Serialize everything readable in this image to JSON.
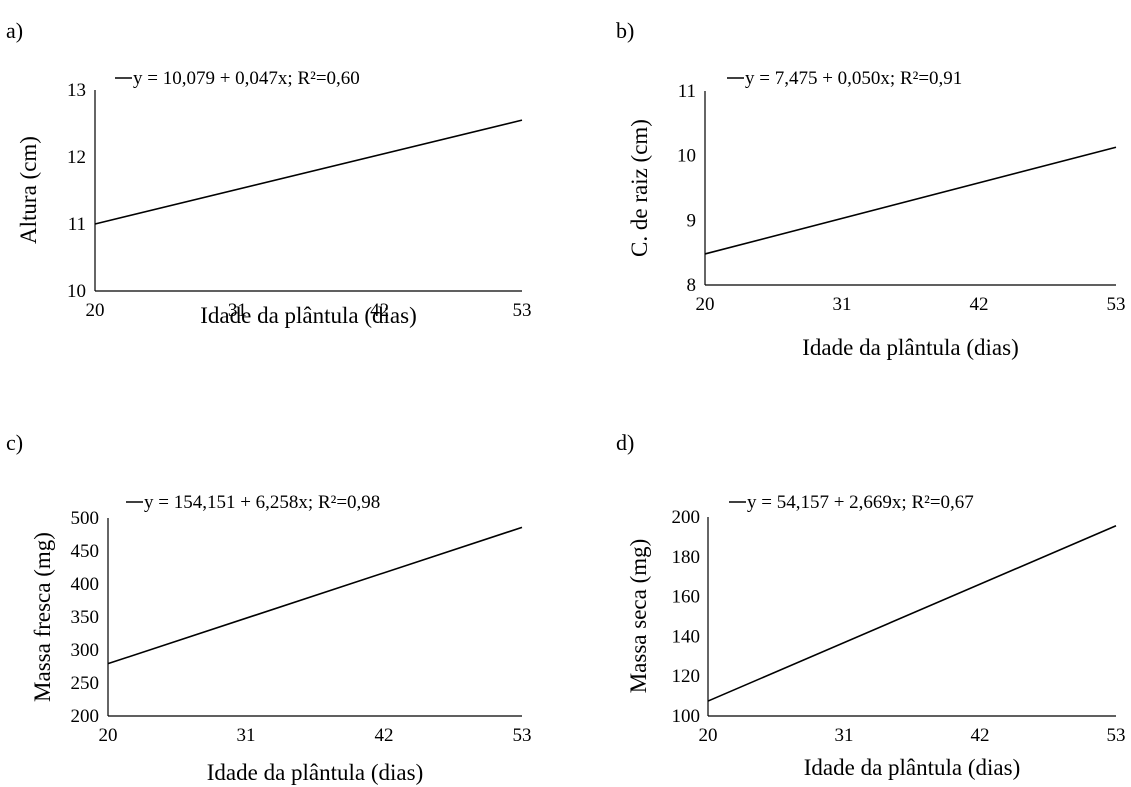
{
  "panels": [
    {
      "label": "a)"
    },
    {
      "label": "b)"
    },
    {
      "label": "c)"
    },
    {
      "label": "d)"
    }
  ],
  "chart_data": [
    {
      "type": "line",
      "xlabel": "Idade da plântula (dias)",
      "ylabel": "Altura (cm)",
      "x_ticks": [
        20,
        31,
        42,
        53
      ],
      "y_ticks": [
        10,
        11,
        12,
        13
      ],
      "xlim": [
        20,
        53
      ],
      "ylim": [
        10,
        13
      ],
      "grid": false,
      "legend_position": "top-left",
      "series": [
        {
          "name": "y = 10,079 + 0,047x; R²=0,60",
          "x": [
            20,
            53
          ],
          "y": [
            11.0,
            12.55
          ],
          "color": "#000000"
        }
      ]
    },
    {
      "type": "line",
      "xlabel": "Idade da plântula (dias)",
      "ylabel": "C. de raiz (cm)",
      "x_ticks": [
        20,
        31,
        42,
        53
      ],
      "y_ticks": [
        8,
        9,
        10,
        11
      ],
      "xlim": [
        20,
        53
      ],
      "ylim": [
        8,
        11
      ],
      "grid": false,
      "legend_position": "top-left",
      "series": [
        {
          "name": "y = 7,475 + 0,050x; R²=0,91",
          "x": [
            20,
            53
          ],
          "y": [
            8.48,
            10.13
          ],
          "color": "#000000"
        }
      ]
    },
    {
      "type": "line",
      "xlabel": "Idade da plântula (dias)",
      "ylabel": "Massa fresca (mg)",
      "x_ticks": [
        20,
        31,
        42,
        53
      ],
      "y_ticks": [
        200,
        250,
        300,
        350,
        400,
        450,
        500
      ],
      "xlim": [
        20,
        53
      ],
      "ylim": [
        200,
        500
      ],
      "grid": false,
      "legend_position": "top-left",
      "series": [
        {
          "name": "y = 154,151 + 6,258x; R²=0,98",
          "x": [
            20,
            53
          ],
          "y": [
            279.3,
            485.8
          ],
          "color": "#000000"
        }
      ]
    },
    {
      "type": "line",
      "xlabel": "Idade da plântula (dias)",
      "ylabel": "Massa seca (mg)",
      "x_ticks": [
        20,
        31,
        42,
        53
      ],
      "y_ticks": [
        100,
        120,
        140,
        160,
        180,
        200
      ],
      "xlim": [
        20,
        53
      ],
      "ylim": [
        100,
        200
      ],
      "grid": false,
      "legend_position": "top-left",
      "series": [
        {
          "name": "y = 54,157 + 2,669x; R²=0,67",
          "x": [
            20,
            53
          ],
          "y": [
            107.5,
            195.6
          ],
          "color": "#000000"
        }
      ]
    }
  ]
}
